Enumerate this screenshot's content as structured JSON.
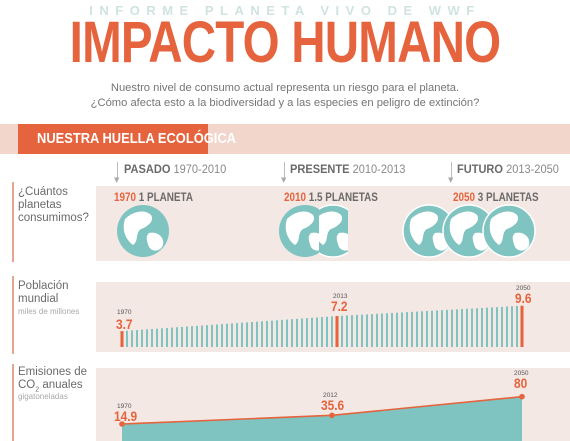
{
  "header": {
    "supertitle": "INFORME PLANETA VIVO DE WWF",
    "title": "IMPACTO HUMANO",
    "subtitle_line1": "Nuestro nivel de consumo actual representa un riesgo para el planeta.",
    "subtitle_line2": "¿Cómo afecta esto a la biodiversidad y a las especies en peligro de extinción?"
  },
  "section": {
    "title": "NUESTRA HUELLA ECOLÓGICA",
    "accent": "#e5633d",
    "teal": "#7fc4c0"
  },
  "periods": [
    {
      "name": "PASADO",
      "years": "1970-2010"
    },
    {
      "name": "PRESENTE",
      "years": "2010-2013"
    },
    {
      "name": "FUTURO",
      "years": "2013-2050"
    }
  ],
  "planets_row": {
    "label_line1": "¿Cuántos",
    "label_line2": "planetas",
    "label_line3": "consumimos?",
    "items": [
      {
        "year": "1970",
        "text": "1 PLANETA",
        "planets": 1
      },
      {
        "year": "2010",
        "text": "1.5 PLANETAS",
        "planets": 1.5
      },
      {
        "year": "2050",
        "text": "3 PLANETAS",
        "planets": 3
      }
    ]
  },
  "population_row": {
    "label_line1": "Población",
    "label_line2": "mundial",
    "unit": "miles de millones",
    "points": [
      {
        "year": "1970",
        "value": "3.7"
      },
      {
        "year": "2013",
        "value": "7.2"
      },
      {
        "year": "2050",
        "value": "9.6"
      }
    ]
  },
  "emissions_row": {
    "label_line1": "Emisiones de",
    "label_line2_prefix": "CO",
    "label_line2_sub": "2",
    "label_line2_suffix": " anuales",
    "unit": "gigatoneladas",
    "points": [
      {
        "year": "1970",
        "value": "14.9"
      },
      {
        "year": "2012",
        "value": "35.6"
      },
      {
        "year": "2050",
        "value": "80"
      }
    ]
  }
}
